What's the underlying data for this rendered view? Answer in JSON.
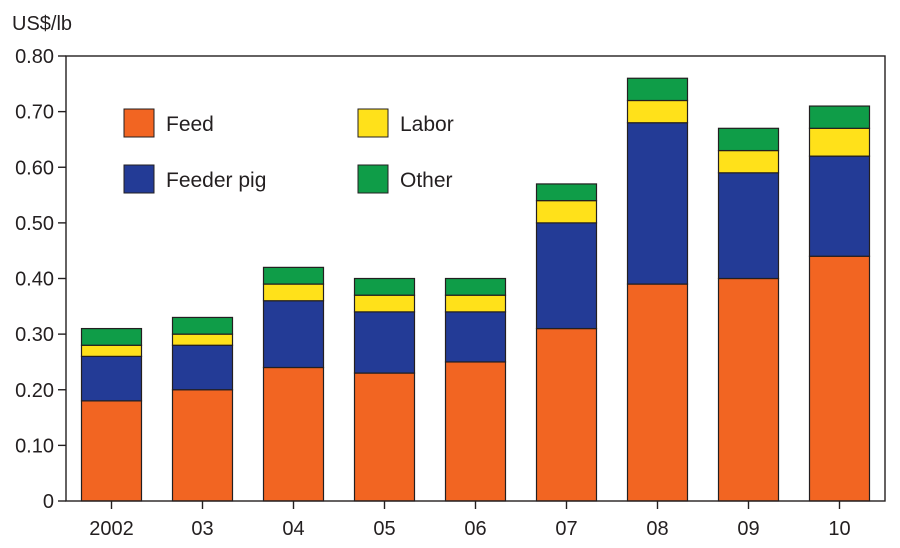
{
  "chart_data": {
    "type": "bar",
    "stacked": true,
    "ylabel": "US$/lb",
    "xlabel": "",
    "ylim": [
      0,
      0.8
    ],
    "y_ticks": [
      0,
      0.1,
      0.2,
      0.3,
      0.4,
      0.5,
      0.6,
      0.7,
      0.8
    ],
    "y_tick_labels": [
      "0",
      "0.10",
      "0.20",
      "0.30",
      "0.40",
      "0.50",
      "0.60",
      "0.70",
      "0.80"
    ],
    "categories": [
      "2002",
      "03",
      "04",
      "05",
      "06",
      "07",
      "08",
      "09",
      "10"
    ],
    "series": [
      {
        "name": "Feed",
        "color": "#f26522",
        "values": [
          0.18,
          0.2,
          0.24,
          0.23,
          0.25,
          0.31,
          0.39,
          0.4,
          0.44
        ]
      },
      {
        "name": "Feeder pig",
        "color": "#233b96",
        "values": [
          0.08,
          0.08,
          0.12,
          0.11,
          0.09,
          0.19,
          0.29,
          0.19,
          0.18
        ]
      },
      {
        "name": "Labor",
        "color": "#ffe11a",
        "values": [
          0.02,
          0.02,
          0.03,
          0.03,
          0.03,
          0.04,
          0.04,
          0.04,
          0.05
        ]
      },
      {
        "name": "Other",
        "color": "#0f9d48",
        "values": [
          0.03,
          0.03,
          0.03,
          0.03,
          0.03,
          0.03,
          0.04,
          0.04,
          0.04
        ]
      }
    ],
    "legend": {
      "placement": "top-left",
      "order": [
        "Feed",
        "Labor",
        "Feeder pig",
        "Other"
      ]
    },
    "grid": false
  }
}
